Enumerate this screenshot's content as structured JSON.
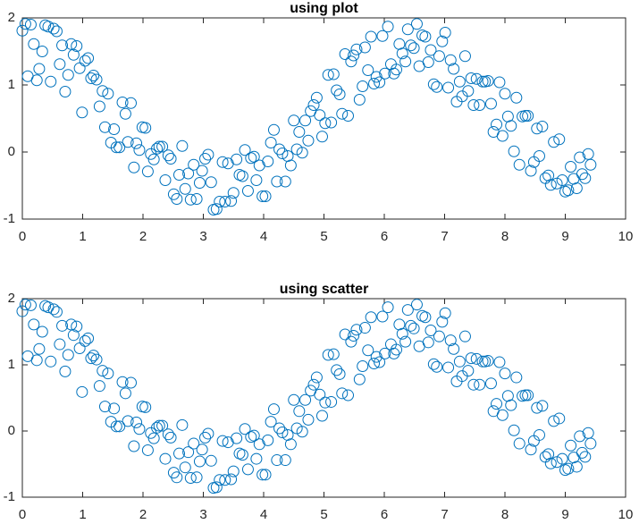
{
  "chart_data": [
    {
      "type": "scatter",
      "title": "using plot",
      "color": "#0072bd",
      "xlim": [
        0,
        10
      ],
      "ylim": [
        -1,
        2
      ],
      "xticks": [
        0,
        1,
        2,
        3,
        4,
        5,
        6,
        7,
        8,
        9,
        10
      ],
      "yticks": [
        -1,
        0,
        1,
        2
      ],
      "x": [
        0,
        0.05,
        0.09,
        0.14,
        0.19,
        0.24,
        0.28,
        0.33,
        0.38,
        0.43,
        0.47,
        0.52,
        0.57,
        0.62,
        0.66,
        0.71,
        0.76,
        0.81,
        0.85,
        0.9,
        0.95,
        0.99,
        1.04,
        1.09,
        1.14,
        1.18,
        1.23,
        1.28,
        1.33,
        1.37,
        1.42,
        1.47,
        1.52,
        1.56,
        1.61,
        1.66,
        1.71,
        1.75,
        1.8,
        1.85,
        1.89,
        1.94,
        1.99,
        2.04,
        2.08,
        2.13,
        2.18,
        2.23,
        2.27,
        2.32,
        2.37,
        2.42,
        2.46,
        2.51,
        2.56,
        2.6,
        2.65,
        2.7,
        2.75,
        2.79,
        2.84,
        2.89,
        2.94,
        2.98,
        3.03,
        3.08,
        3.13,
        3.17,
        3.22,
        3.27,
        3.32,
        3.36,
        3.41,
        3.46,
        3.5,
        3.55,
        3.6,
        3.65,
        3.69,
        3.74,
        3.79,
        3.84,
        3.88,
        3.93,
        3.98,
        4.03,
        4.07,
        4.12,
        4.17,
        4.22,
        4.26,
        4.31,
        4.36,
        4.4,
        4.45,
        4.5,
        4.55,
        4.59,
        4.64,
        4.69,
        4.74,
        4.78,
        4.83,
        4.88,
        4.93,
        4.97,
        5.02,
        5.07,
        5.12,
        5.16,
        5.21,
        5.26,
        5.3,
        5.35,
        5.4,
        5.45,
        5.49,
        5.54,
        5.59,
        5.64,
        5.68,
        5.73,
        5.78,
        5.83,
        5.87,
        5.92,
        5.97,
        6.01,
        6.06,
        6.11,
        6.16,
        6.2,
        6.25,
        6.3,
        6.35,
        6.39,
        6.44,
        6.49,
        6.54,
        6.58,
        6.63,
        6.68,
        6.73,
        6.77,
        6.82,
        6.87,
        6.91,
        6.96,
        7.01,
        7.06,
        7.1,
        7.15,
        7.2,
        7.25,
        7.29,
        7.34,
        7.39,
        7.44,
        7.48,
        7.53,
        7.58,
        7.63,
        7.67,
        7.72,
        7.77,
        7.81,
        7.86,
        7.91,
        7.96,
        8,
        8.05,
        8.1,
        8.15,
        8.19,
        8.24,
        8.29,
        8.34,
        8.38,
        8.43,
        8.48,
        8.53,
        8.57,
        8.62,
        8.67,
        8.72,
        8.76,
        8.81,
        8.86,
        8.9,
        8.95,
        9,
        9.05,
        9.09,
        9.14,
        9.19,
        9.24,
        9.28,
        9.33,
        9.38,
        9.42
      ],
      "values": [
        1.81,
        1.91,
        1.13,
        1.9,
        1.61,
        1.07,
        1.24,
        1.5,
        1.89,
        1.87,
        1.05,
        1.84,
        1.8,
        1.31,
        1.59,
        0.9,
        1.15,
        1.61,
        1.45,
        1.58,
        1.25,
        0.59,
        1.36,
        1.4,
        1.1,
        1.14,
        1.08,
        0.68,
        0.91,
        0.37,
        0.87,
        0.14,
        0.34,
        0.07,
        0.07,
        0.74,
        0.57,
        0.15,
        0.73,
        -0.23,
        0.13,
        0.03,
        0.37,
        0.36,
        -0.29,
        -0.03,
        -0.11,
        0.05,
        0.08,
        0.08,
        -0.42,
        -0.05,
        -0.1,
        -0.63,
        -0.7,
        -0.34,
        0.09,
        -0.55,
        -0.32,
        -0.71,
        -0.19,
        -0.7,
        -0.46,
        -0.28,
        -0.1,
        -0.04,
        -0.45,
        -0.86,
        -0.85,
        -0.74,
        -0.15,
        -0.74,
        -0.17,
        -0.73,
        -0.61,
        -0.11,
        -0.34,
        -0.36,
        0.03,
        -0.58,
        -0.09,
        -0.07,
        -0.42,
        -0.2,
        -0.66,
        -0.66,
        -0.14,
        0.14,
        0.33,
        -0.44,
        0.04,
        -0.02,
        -0.44,
        -0.06,
        -0.2,
        0.47,
        0.04,
        0.3,
        -0.01,
        0.47,
        0.17,
        0.61,
        0.7,
        0.81,
        0.55,
        0.23,
        0.43,
        1.15,
        0.44,
        1.16,
        0.92,
        0.86,
        0.57,
        1.46,
        0.54,
        1.35,
        1.44,
        1.53,
        0.78,
        0.98,
        1.56,
        1.22,
        1.72,
        1.02,
        1.12,
        1.04,
        1.73,
        1.17,
        1.87,
        1.31,
        1.17,
        1.23,
        1.61,
        1.47,
        1.35,
        1.83,
        1.59,
        1.55,
        1.91,
        1.28,
        1.74,
        1.72,
        1.34,
        1.52,
        1.01,
        0.97,
        1.43,
        1.65,
        1.78,
        0.96,
        1.37,
        1.24,
        0.75,
        1.05,
        0.83,
        1.43,
        0.91,
        1.1,
        0.7,
        1.09,
        0.7,
        1.05,
        1.05,
        1.06,
        0.72,
        0.3,
        0.41,
        1.04,
        0.24,
        0.87,
        0.53,
        0.39,
        0.01,
        0.81,
        -0.19,
        0.53,
        0.54,
        0.54,
        -0.28,
        -0.15,
        0.35,
        -0.06,
        0.38,
        -0.39,
        -0.35,
        -0.49,
        0.15,
        -0.47,
        0.19,
        -0.42,
        -0.59,
        -0.57,
        -0.22,
        -0.4,
        -0.54,
        -0.08,
        -0.33,
        -0.39,
        -0.03,
        -0.19
      ]
    },
    {
      "type": "scatter",
      "title": "using scatter",
      "color": "#0072bd",
      "xlim": [
        0,
        10
      ],
      "ylim": [
        -1,
        2
      ],
      "xticks": [
        0,
        1,
        2,
        3,
        4,
        5,
        6,
        7,
        8,
        9,
        10
      ],
      "yticks": [
        -1,
        0,
        1,
        2
      ],
      "x": [
        0,
        0.05,
        0.09,
        0.14,
        0.19,
        0.24,
        0.28,
        0.33,
        0.38,
        0.43,
        0.47,
        0.52,
        0.57,
        0.62,
        0.66,
        0.71,
        0.76,
        0.81,
        0.85,
        0.9,
        0.95,
        0.99,
        1.04,
        1.09,
        1.14,
        1.18,
        1.23,
        1.28,
        1.33,
        1.37,
        1.42,
        1.47,
        1.52,
        1.56,
        1.61,
        1.66,
        1.71,
        1.75,
        1.8,
        1.85,
        1.89,
        1.94,
        1.99,
        2.04,
        2.08,
        2.13,
        2.18,
        2.23,
        2.27,
        2.32,
        2.37,
        2.42,
        2.46,
        2.51,
        2.56,
        2.6,
        2.65,
        2.7,
        2.75,
        2.79,
        2.84,
        2.89,
        2.94,
        2.98,
        3.03,
        3.08,
        3.13,
        3.17,
        3.22,
        3.27,
        3.32,
        3.36,
        3.41,
        3.46,
        3.5,
        3.55,
        3.6,
        3.65,
        3.69,
        3.74,
        3.79,
        3.84,
        3.88,
        3.93,
        3.98,
        4.03,
        4.07,
        4.12,
        4.17,
        4.22,
        4.26,
        4.31,
        4.36,
        4.4,
        4.45,
        4.5,
        4.55,
        4.59,
        4.64,
        4.69,
        4.74,
        4.78,
        4.83,
        4.88,
        4.93,
        4.97,
        5.02,
        5.07,
        5.12,
        5.16,
        5.21,
        5.26,
        5.3,
        5.35,
        5.4,
        5.45,
        5.49,
        5.54,
        5.59,
        5.64,
        5.68,
        5.73,
        5.78,
        5.83,
        5.87,
        5.92,
        5.97,
        6.01,
        6.06,
        6.11,
        6.16,
        6.2,
        6.25,
        6.3,
        6.35,
        6.39,
        6.44,
        6.49,
        6.54,
        6.58,
        6.63,
        6.68,
        6.73,
        6.77,
        6.82,
        6.87,
        6.91,
        6.96,
        7.01,
        7.06,
        7.1,
        7.15,
        7.2,
        7.25,
        7.29,
        7.34,
        7.39,
        7.44,
        7.48,
        7.53,
        7.58,
        7.63,
        7.67,
        7.72,
        7.77,
        7.81,
        7.86,
        7.91,
        7.96,
        8,
        8.05,
        8.1,
        8.15,
        8.19,
        8.24,
        8.29,
        8.34,
        8.38,
        8.43,
        8.48,
        8.53,
        8.57,
        8.62,
        8.67,
        8.72,
        8.76,
        8.81,
        8.86,
        8.9,
        8.95,
        9,
        9.05,
        9.09,
        9.14,
        9.19,
        9.24,
        9.28,
        9.33,
        9.38,
        9.42
      ],
      "values": [
        1.81,
        1.91,
        1.13,
        1.9,
        1.61,
        1.07,
        1.24,
        1.5,
        1.89,
        1.87,
        1.05,
        1.84,
        1.8,
        1.31,
        1.59,
        0.9,
        1.15,
        1.61,
        1.45,
        1.58,
        1.25,
        0.59,
        1.36,
        1.4,
        1.1,
        1.14,
        1.08,
        0.68,
        0.91,
        0.37,
        0.87,
        0.14,
        0.34,
        0.07,
        0.07,
        0.74,
        0.57,
        0.15,
        0.73,
        -0.23,
        0.13,
        0.03,
        0.37,
        0.36,
        -0.29,
        -0.03,
        -0.11,
        0.05,
        0.08,
        0.08,
        -0.42,
        -0.05,
        -0.1,
        -0.63,
        -0.7,
        -0.34,
        0.09,
        -0.55,
        -0.32,
        -0.71,
        -0.19,
        -0.7,
        -0.46,
        -0.28,
        -0.1,
        -0.04,
        -0.45,
        -0.86,
        -0.85,
        -0.74,
        -0.15,
        -0.74,
        -0.17,
        -0.73,
        -0.61,
        -0.11,
        -0.34,
        -0.36,
        0.03,
        -0.58,
        -0.09,
        -0.07,
        -0.42,
        -0.2,
        -0.66,
        -0.66,
        -0.14,
        0.14,
        0.33,
        -0.44,
        0.04,
        -0.02,
        -0.44,
        -0.06,
        -0.2,
        0.47,
        0.04,
        0.3,
        -0.01,
        0.47,
        0.17,
        0.61,
        0.7,
        0.81,
        0.55,
        0.23,
        0.43,
        1.15,
        0.44,
        1.16,
        0.92,
        0.86,
        0.57,
        1.46,
        0.54,
        1.35,
        1.44,
        1.53,
        0.78,
        0.98,
        1.56,
        1.22,
        1.72,
        1.02,
        1.12,
        1.04,
        1.73,
        1.17,
        1.87,
        1.31,
        1.17,
        1.23,
        1.61,
        1.47,
        1.35,
        1.83,
        1.59,
        1.55,
        1.91,
        1.28,
        1.74,
        1.72,
        1.34,
        1.52,
        1.01,
        0.97,
        1.43,
        1.65,
        1.78,
        0.96,
        1.37,
        1.24,
        0.75,
        1.05,
        0.83,
        1.43,
        0.91,
        1.1,
        0.7,
        1.09,
        0.7,
        1.05,
        1.05,
        1.06,
        0.72,
        0.3,
        0.41,
        1.04,
        0.24,
        0.87,
        0.53,
        0.39,
        0.01,
        0.81,
        -0.19,
        0.53,
        0.54,
        0.54,
        -0.28,
        -0.15,
        0.35,
        -0.06,
        0.38,
        -0.39,
        -0.35,
        -0.49,
        0.15,
        -0.47,
        0.19,
        -0.42,
        -0.59,
        -0.57,
        -0.22,
        -0.4,
        -0.54,
        -0.08,
        -0.33,
        -0.39,
        -0.03,
        -0.19
      ]
    }
  ]
}
